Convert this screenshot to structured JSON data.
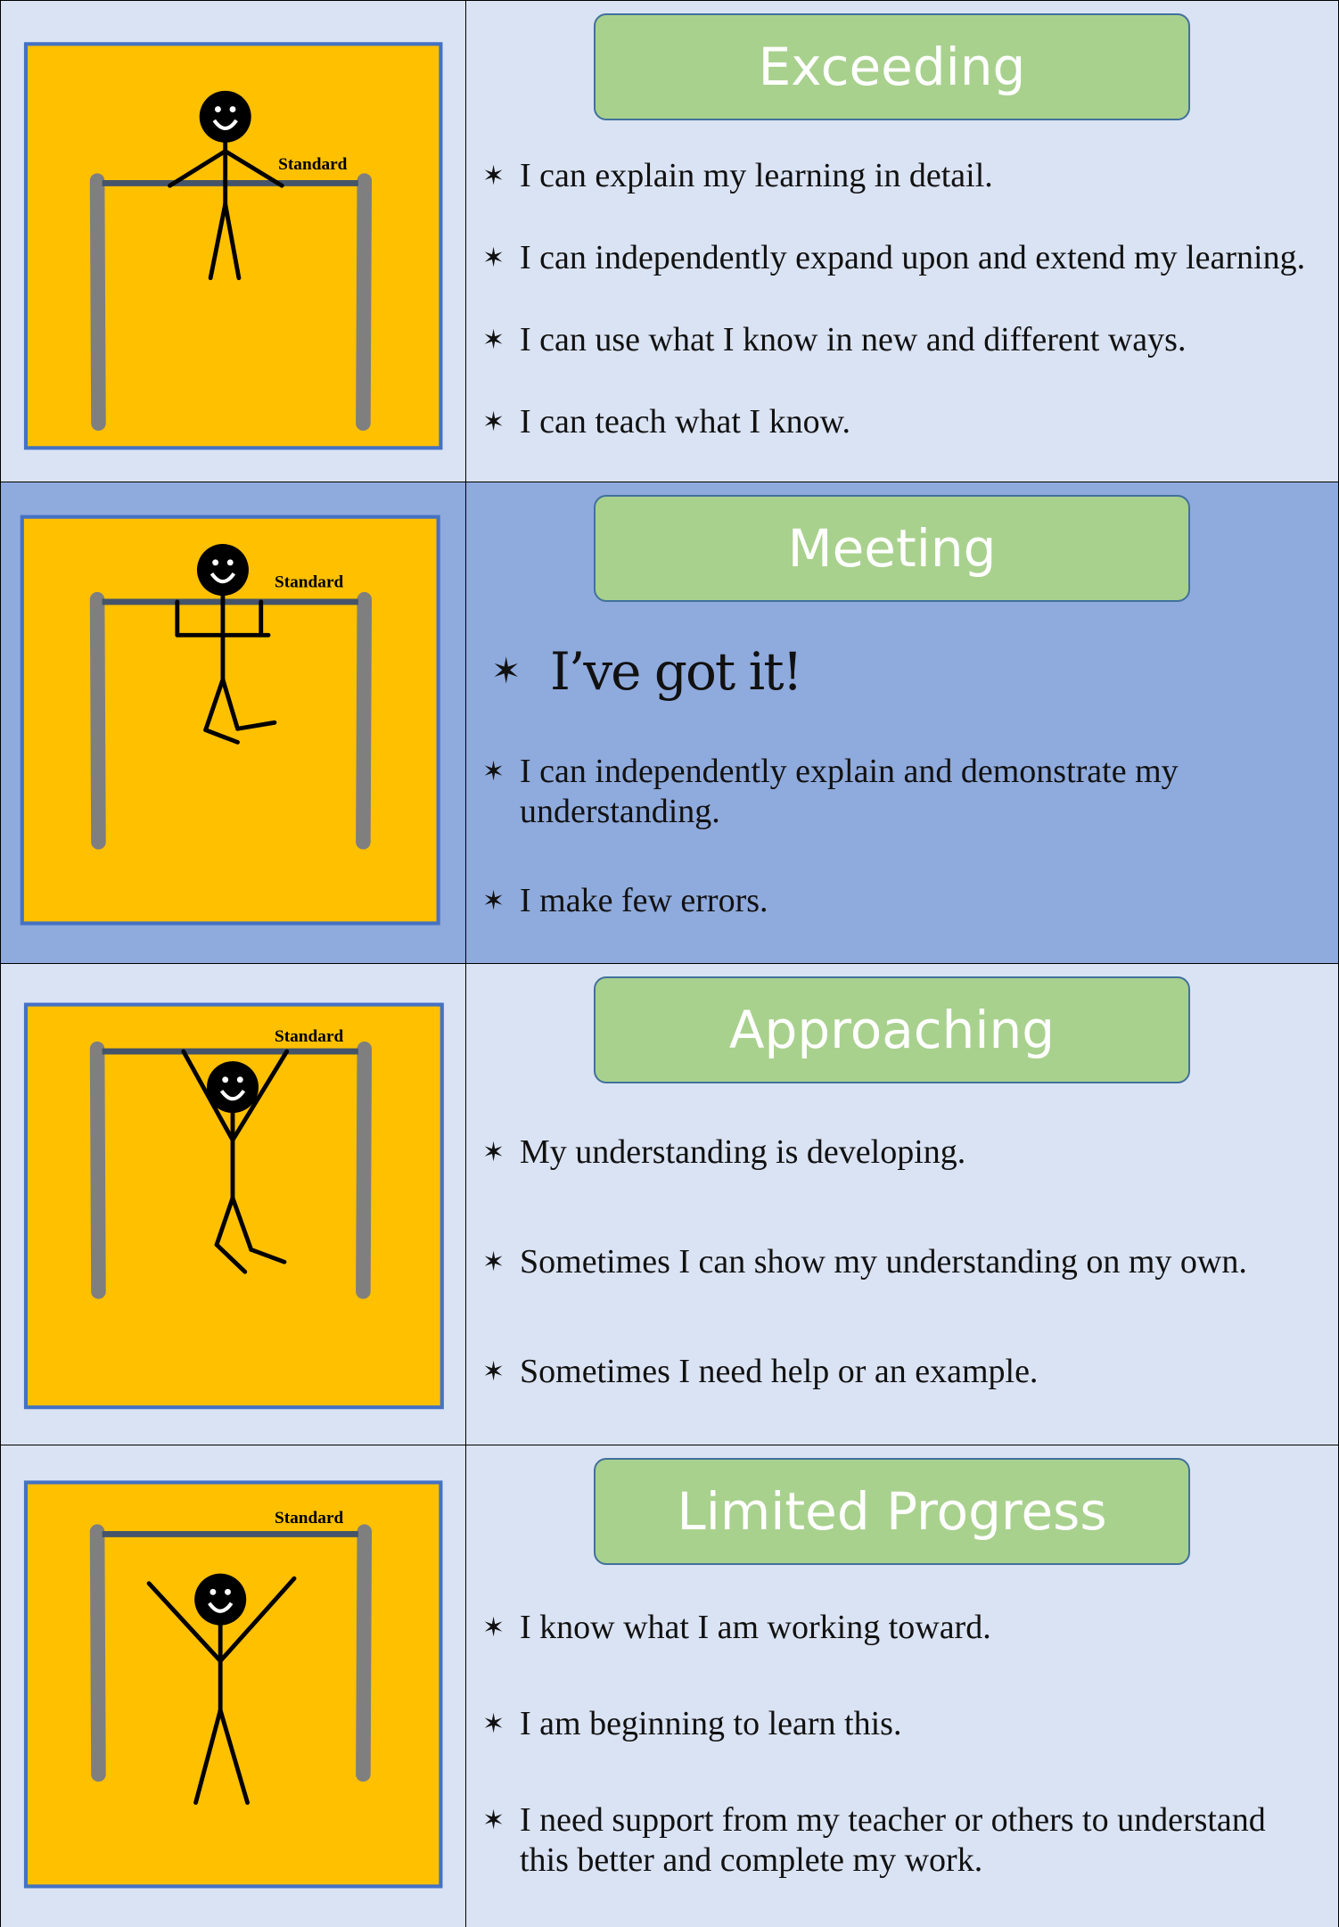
{
  "rows": [
    {
      "title": "Exceeding",
      "figure_label": "Standard",
      "items": [
        "I can explain my learning in detail.",
        "I can independently expand upon and extend my learning.",
        "I can use what I know in new and different ways.",
        "I can teach what I know."
      ]
    },
    {
      "title": "Meeting",
      "figure_label": "Standard",
      "headline": "I’ve got it!",
      "items": [
        "I can independently explain and demonstrate my understanding.",
        "I make few errors."
      ]
    },
    {
      "title": "Approaching",
      "figure_label": "Standard",
      "items": [
        "My understanding is developing.",
        "Sometimes I can show my understanding on my own.",
        "Sometimes I need help or an example."
      ]
    },
    {
      "title": "Limited Progress",
      "figure_label": "Standard",
      "items": [
        "I know what I am working toward.",
        "I am beginning to learn this.",
        "I need support from my teacher or others to understand this better and complete my work."
      ]
    }
  ]
}
